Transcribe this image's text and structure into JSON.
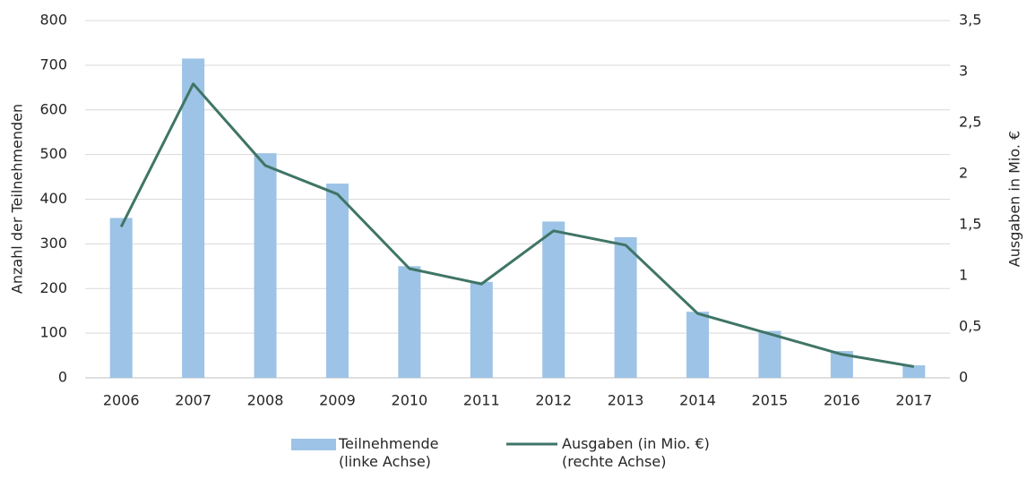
{
  "chart_data": {
    "type": "bar-line",
    "categories": [
      "2006",
      "2007",
      "2008",
      "2009",
      "2010",
      "2011",
      "2012",
      "2013",
      "2014",
      "2015",
      "2016",
      "2017"
    ],
    "ylabel": "Anzahl der Teilnehmenden",
    "y2label": "Ausgaben in Mio. €",
    "ylim": [
      0,
      800
    ],
    "yticks": [
      0,
      100,
      200,
      300,
      400,
      500,
      600,
      700,
      800
    ],
    "y2lim": [
      0,
      3.5
    ],
    "y2ticks": [
      0,
      {
        "value": 0.5,
        "label": "0,5"
      },
      1,
      {
        "value": 1.5,
        "label": "1,5"
      },
      2,
      {
        "value": 2.5,
        "label": "2,5"
      },
      3,
      {
        "value": 3.5,
        "label": "3,5"
      }
    ],
    "grid": true,
    "series": [
      {
        "name": "Teilnehmende (linke Achse)",
        "type": "bar",
        "color": "#9dc3e6",
        "values": [
          358,
          715,
          503,
          435,
          250,
          215,
          350,
          315,
          148,
          105,
          60,
          28
        ]
      },
      {
        "name": "Ausgaben (in Mio. €) (rechte Achse)",
        "type": "line",
        "axis": "y2",
        "color": "#3f7566",
        "values": [
          1.48,
          2.88,
          2.08,
          1.8,
          1.07,
          0.92,
          1.44,
          1.3,
          0.63,
          0.43,
          0.23,
          0.11
        ]
      }
    ]
  }
}
